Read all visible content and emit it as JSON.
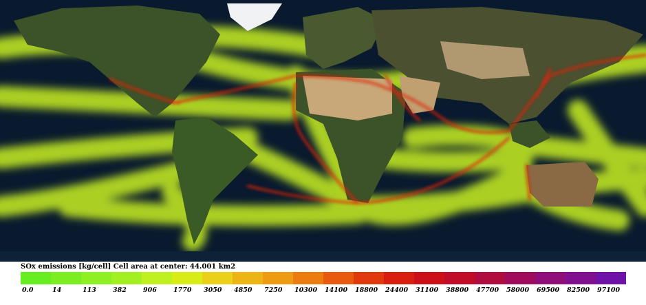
{
  "legend": {
    "title": "SOx emissions [kg/cell] Cell area at center: 44.001 km2",
    "ticks": [
      "0.0",
      "14",
      "113",
      "382",
      "906",
      "1770",
      "3050",
      "4850",
      "7250",
      "10300",
      "14100",
      "18800",
      "24400",
      "31100",
      "38800",
      "47700",
      "58000",
      "69500",
      "82500",
      "97100"
    ],
    "colors": [
      "#66ee22",
      "#7aee22",
      "#8df022",
      "#a3f022",
      "#bff020",
      "#d8ec18",
      "#ead018",
      "#ecb414",
      "#ee9a12",
      "#ec7c10",
      "#e85a0e",
      "#e03a0c",
      "#d81e0e",
      "#cc1018",
      "#c00c28",
      "#b00c40",
      "#a00c5c",
      "#900e78",
      "#801090",
      "#6e12a8"
    ]
  },
  "map_colors": {
    "ocean": "#0a1a2e",
    "land": "#3c5228",
    "desert": "#c8a878",
    "ice": "#f0f2f4",
    "low_routes": "#c8f020",
    "high_routes": "#e02010"
  }
}
